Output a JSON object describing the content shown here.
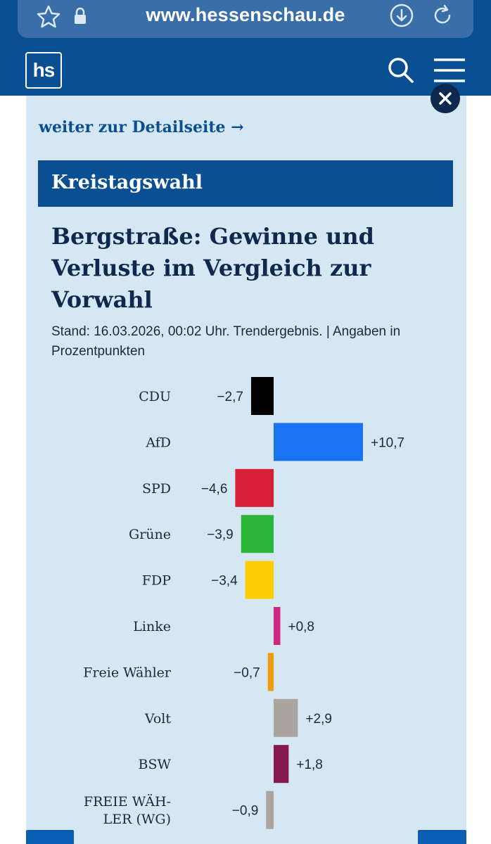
{
  "browser": {
    "url": "www.hessenschau.de",
    "icons": [
      "star-icon",
      "lock-icon",
      "download-icon",
      "reload-icon"
    ]
  },
  "header": {
    "logo_text": "hs",
    "icons": [
      "search-icon",
      "menu-icon"
    ]
  },
  "panel": {
    "detail_link": "weiter zur Detailseite →",
    "section_label": "Kreistagswahl",
    "title": "Bergstraße: Gewinne und Verluste im Vergleich zur Vorwahl",
    "subtitle": "Stand: 16.03.2026, 00:02 Uhr. Trendergebnis. | Angaben in Prozentpunkten",
    "close_icon": "close-icon"
  },
  "chart_data": {
    "type": "bar",
    "orientation": "horizontal",
    "title": "Bergstraße: Gewinne und Verluste im Vergleich zur Vorwahl",
    "unit": "Prozentpunkte",
    "categories": [
      "CDU",
      "AfD",
      "SPD",
      "Grüne",
      "FDP",
      "Linke",
      "Freie Wähler",
      "Volt",
      "BSW",
      "FREIE WÄH-LER (WG)"
    ],
    "category_lines": [
      [
        "CDU"
      ],
      [
        "AfD"
      ],
      [
        "SPD"
      ],
      [
        "Grüne"
      ],
      [
        "FDP"
      ],
      [
        "Linke"
      ],
      [
        "Freie Wähler"
      ],
      [
        "Volt"
      ],
      [
        "BSW"
      ],
      [
        "FREIE WÄH-",
        "LER (WG)"
      ]
    ],
    "values": [
      -2.7,
      10.7,
      -4.6,
      -3.9,
      -3.4,
      0.8,
      -0.7,
      2.9,
      1.8,
      -0.9
    ],
    "value_labels": [
      "−2,7",
      "+10,7",
      "−4,6",
      "−3,9",
      "−3,4",
      "+0,8",
      "−0,7",
      "+2,9",
      "+1,8",
      "−0,9"
    ],
    "colors": [
      "#000000",
      "#1a73f0",
      "#d81f36",
      "#2bb63a",
      "#fdcd06",
      "#d5267f",
      "#ef9c0e",
      "#aaa59e",
      "#861a4f",
      "#aaa59e"
    ]
  }
}
